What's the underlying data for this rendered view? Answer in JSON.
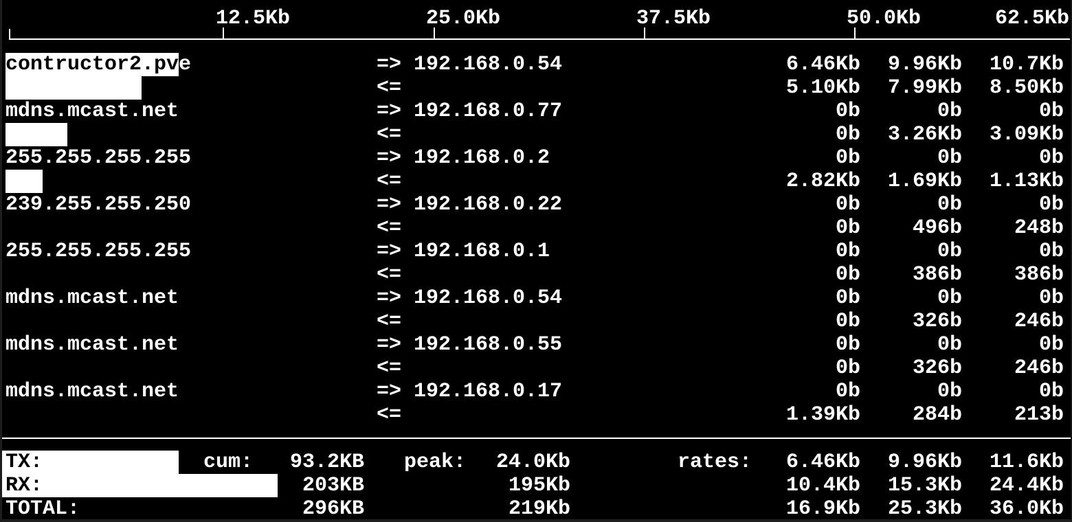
{
  "app": "iftop-network-bandwidth-monitor",
  "colors": {
    "background": "#000000",
    "foreground": "#ffffff",
    "bar_fill": "#ffffff",
    "inverse_text": "#000000"
  },
  "scale_bar": {
    "unit_labels": [
      "12.5Kb",
      "25.0Kb",
      "37.5Kb",
      "50.0Kb",
      "62.5Kb"
    ]
  },
  "arrows": {
    "tx": "=>",
    "rx": "<="
  },
  "flows": [
    {
      "host": "contructor2.pve",
      "ip": "192.168.0.54",
      "tx_rates": [
        "6.46Kb",
        "9.96Kb",
        "10.7Kb"
      ],
      "rx_rates": [
        "5.10Kb",
        "7.99Kb",
        "8.50Kb"
      ],
      "tx_bar_chars": 14,
      "rx_bar_chars": 11
    },
    {
      "host": "mdns.mcast.net",
      "ip": "192.168.0.77",
      "tx_rates": [
        "0b",
        "0b",
        "0b"
      ],
      "rx_rates": [
        "0b",
        "3.26Kb",
        "3.09Kb"
      ],
      "tx_bar_chars": 0,
      "rx_bar_chars": 5
    },
    {
      "host": "255.255.255.255",
      "ip": "192.168.0.2",
      "tx_rates": [
        "0b",
        "0b",
        "0b"
      ],
      "rx_rates": [
        "2.82Kb",
        "1.69Kb",
        "1.13Kb"
      ],
      "tx_bar_chars": 0,
      "rx_bar_chars": 3
    },
    {
      "host": "239.255.255.250",
      "ip": "192.168.0.22",
      "tx_rates": [
        "0b",
        "0b",
        "0b"
      ],
      "rx_rates": [
        "0b",
        "496b",
        "248b"
      ],
      "tx_bar_chars": 0,
      "rx_bar_chars": 0
    },
    {
      "host": "255.255.255.255",
      "ip": "192.168.0.1",
      "tx_rates": [
        "0b",
        "0b",
        "0b"
      ],
      "rx_rates": [
        "0b",
        "386b",
        "386b"
      ],
      "tx_bar_chars": 0,
      "rx_bar_chars": 0
    },
    {
      "host": "mdns.mcast.net",
      "ip": "192.168.0.54",
      "tx_rates": [
        "0b",
        "0b",
        "0b"
      ],
      "rx_rates": [
        "0b",
        "326b",
        "246b"
      ],
      "tx_bar_chars": 0,
      "rx_bar_chars": 0
    },
    {
      "host": "mdns.mcast.net",
      "ip": "192.168.0.55",
      "tx_rates": [
        "0b",
        "0b",
        "0b"
      ],
      "rx_rates": [
        "0b",
        "326b",
        "246b"
      ],
      "tx_bar_chars": 0,
      "rx_bar_chars": 0
    },
    {
      "host": "mdns.mcast.net",
      "ip": "192.168.0.17",
      "tx_rates": [
        "0b",
        "0b",
        "0b"
      ],
      "rx_rates": [
        "1.39Kb",
        "284b",
        "213b"
      ],
      "tx_bar_chars": 0,
      "rx_bar_chars": 0
    }
  ],
  "summary": {
    "cum_heading": "cum:",
    "peak_heading": "peak:",
    "rates_heading": "rates:",
    "rows": [
      {
        "label": "TX:",
        "cum": "93.2KB",
        "peak": "24.0Kb",
        "rates": [
          "6.46Kb",
          "9.96Kb",
          "11.6Kb"
        ],
        "bar_chars": 14
      },
      {
        "label": "RX:",
        "cum": "203KB",
        "peak": "195Kb",
        "rates": [
          "10.4Kb",
          "15.3Kb",
          "24.4Kb"
        ],
        "bar_chars": 22
      },
      {
        "label": "TOTAL:",
        "cum": "296KB",
        "peak": "219Kb",
        "rates": [
          "16.9Kb",
          "25.3Kb",
          "36.0Kb"
        ],
        "bar_chars": 0
      }
    ]
  }
}
